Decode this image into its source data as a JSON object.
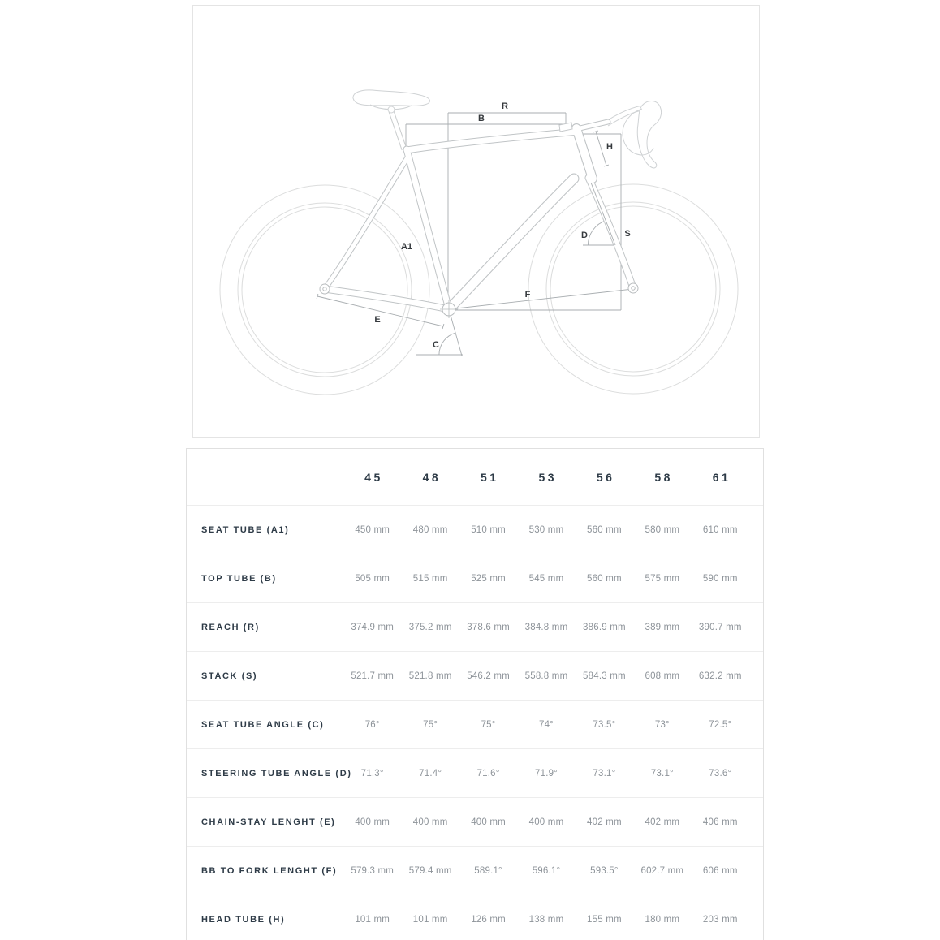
{
  "diagram": {
    "labels": {
      "R": "R",
      "B": "B",
      "H": "H",
      "A1": "A1",
      "D": "D",
      "S": "S",
      "F": "F",
      "E": "E",
      "C": "C"
    }
  },
  "table": {
    "sizes": [
      "45",
      "48",
      "51",
      "53",
      "56",
      "58",
      "61"
    ],
    "rows": [
      {
        "label": "SEAT TUBE (A1)",
        "values": [
          "450 mm",
          "480 mm",
          "510 mm",
          "530 mm",
          "560 mm",
          "580 mm",
          "610 mm"
        ]
      },
      {
        "label": "TOP TUBE (B)",
        "values": [
          "505 mm",
          "515 mm",
          "525 mm",
          "545 mm",
          "560 mm",
          "575 mm",
          "590 mm"
        ]
      },
      {
        "label": "REACH (R)",
        "values": [
          "374.9 mm",
          "375.2 mm",
          "378.6 mm",
          "384.8 mm",
          "386.9 mm",
          "389 mm",
          "390.7 mm"
        ]
      },
      {
        "label": "STACK (S)",
        "values": [
          "521.7 mm",
          "521.8 mm",
          "546.2 mm",
          "558.8 mm",
          "584.3 mm",
          "608 mm",
          "632.2 mm"
        ]
      },
      {
        "label": "SEAT TUBE ANGLE (C)",
        "values": [
          "76°",
          "75°",
          "75°",
          "74°",
          "73.5°",
          "73°",
          "72.5°"
        ]
      },
      {
        "label": "STEERING TUBE ANGLE (D)",
        "values": [
          "71.3°",
          "71.4°",
          "71.6°",
          "71.9°",
          "73.1°",
          "73.1°",
          "73.6°"
        ]
      },
      {
        "label": "CHAIN-STAY LENGHT (E)",
        "values": [
          "400 mm",
          "400 mm",
          "400 mm",
          "400 mm",
          "402 mm",
          "402 mm",
          "406 mm"
        ]
      },
      {
        "label": "BB TO FORK LENGHT (F)",
        "values": [
          "579.3 mm",
          "579.4 mm",
          "589.1°",
          "596.1°",
          "593.5°",
          "602.7 mm",
          "606 mm"
        ]
      },
      {
        "label": "HEAD TUBE (H)",
        "values": [
          "101 mm",
          "101 mm",
          "126 mm",
          "138 mm",
          "155 mm",
          "180 mm",
          "203 mm"
        ]
      }
    ]
  },
  "colors": {
    "text_dark": "#2e3b47",
    "text_value": "#8d9399",
    "border": "#e0e0e0",
    "row_separator": "#ededed",
    "wheel_line": "#dcdddd",
    "frame_line": "#c0c4c6",
    "dimension_line": "#a8adb0",
    "label_text": "#35393d"
  }
}
